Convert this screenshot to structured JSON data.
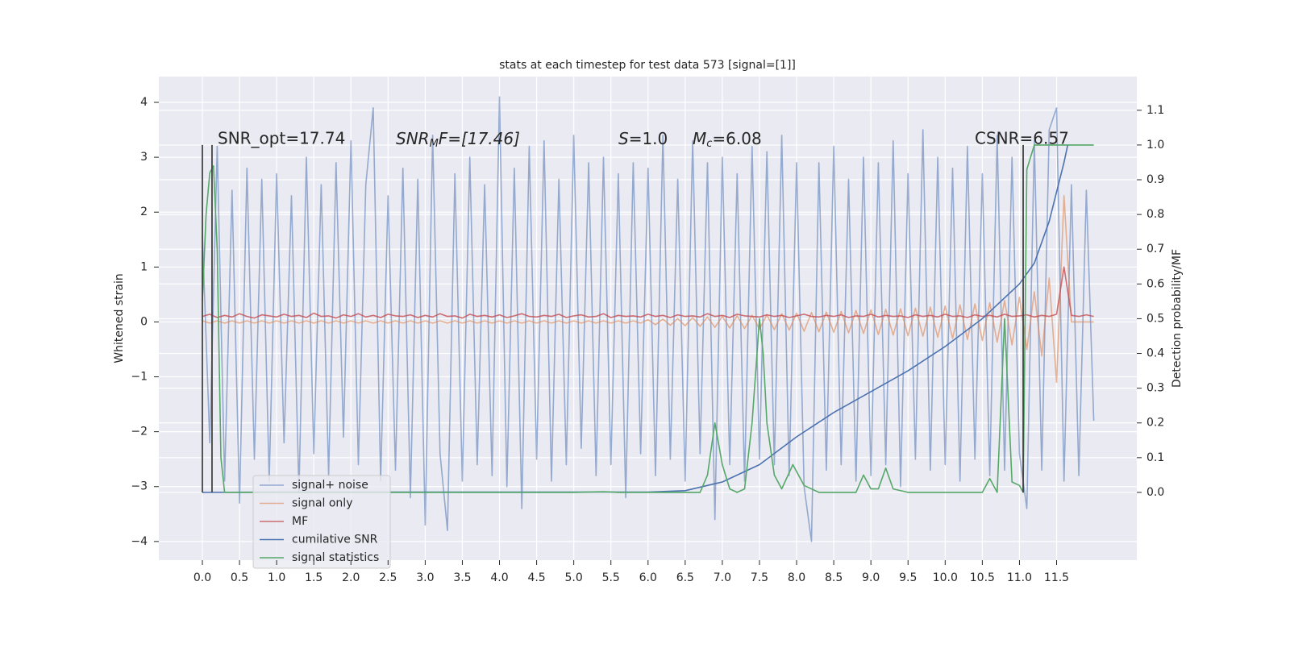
{
  "chart_data": {
    "type": "line",
    "title": "stats at each timestep for test data 573 [signal=[1]]",
    "ylabel": "Whitened strain",
    "y2label": "Detection probability/MF",
    "annotations": [
      [
        "SNR_opt=17.74"
      ],
      [
        "SNR",
        "M",
        "F=[17.46]"
      ],
      [
        "S",
        "=1.0"
      ],
      [
        "M",
        "c",
        "=6.08"
      ],
      [
        "CSNR=6.57"
      ]
    ],
    "grid": true,
    "xlim": [
      -0.586,
      12.58
    ],
    "ylim": [
      -4.34,
      4.47
    ],
    "y2lim": [
      -0.195,
      1.197
    ],
    "xticks": [
      {
        "value": 0,
        "label": "0.0"
      },
      0.5,
      {
        "value": 1,
        "label": "1.0"
      },
      1.5,
      {
        "value": 2,
        "label": "2.0"
      },
      2.5,
      {
        "value": 3,
        "label": "3.0"
      },
      3.5,
      {
        "value": 4,
        "label": "4.0"
      },
      4.5,
      {
        "value": 5,
        "label": "5.0"
      },
      5.5,
      {
        "value": 6,
        "label": "6.0"
      },
      6.5,
      {
        "value": 7,
        "label": "7.0"
      },
      7.5,
      {
        "value": 8,
        "label": "8.0"
      },
      8.5,
      {
        "value": 9,
        "label": "9.0"
      },
      9.5,
      {
        "value": 10,
        "label": "10.0"
      },
      10.5,
      {
        "value": 11,
        "label": "11.0"
      },
      11.5
    ],
    "yticks": [
      {
        "value": -4,
        "label": "−4"
      },
      {
        "value": -3,
        "label": "−3"
      },
      {
        "value": -2,
        "label": "−2"
      },
      {
        "value": -1,
        "label": "−1"
      },
      0,
      1,
      2,
      3,
      4
    ],
    "y2ticks": [
      {
        "value": 0,
        "label": "0.0"
      },
      0.1,
      0.2,
      0.3,
      0.4,
      0.5,
      0.6,
      0.7,
      0.8,
      0.9,
      {
        "value": 1,
        "label": "1.0"
      },
      1.1
    ],
    "vlines": [
      0,
      0.13,
      11.05
    ],
    "vline_range": [
      0,
      1
    ],
    "vline_color": "#444444",
    "series": [
      {
        "name": "signal+ noise",
        "color": "#4c72b0",
        "alpha": 0.55,
        "axis": "y",
        "x": [
          0,
          0.1,
          0.2,
          0.3,
          0.4,
          0.5,
          0.6,
          0.7,
          0.8,
          0.9,
          1,
          1.1,
          1.2,
          1.3,
          1.4,
          1.5,
          1.6,
          1.7,
          1.8,
          1.9,
          2,
          2.1,
          2.2,
          2.3,
          2.4,
          2.5,
          2.6,
          2.7,
          2.8,
          2.9,
          3,
          3.1,
          3.2,
          3.3,
          3.4,
          3.5,
          3.6,
          3.7,
          3.8,
          3.9,
          4,
          4.1,
          4.2,
          4.3,
          4.4,
          4.5,
          4.6,
          4.7,
          4.8,
          4.9,
          5,
          5.1,
          5.2,
          5.3,
          5.4,
          5.5,
          5.6,
          5.7,
          5.8,
          5.9,
          6,
          6.1,
          6.2,
          6.3,
          6.4,
          6.5,
          6.6,
          6.7,
          6.8,
          6.9,
          7,
          7.1,
          7.2,
          7.3,
          7.4,
          7.5,
          7.6,
          7.7,
          7.8,
          7.9,
          8,
          8.1,
          8.2,
          8.3,
          8.4,
          8.5,
          8.6,
          8.7,
          8.8,
          8.9,
          9,
          9.1,
          9.2,
          9.3,
          9.4,
          9.5,
          9.6,
          9.7,
          9.8,
          9.9,
          10,
          10.1,
          10.2,
          10.3,
          10.4,
          10.5,
          10.6,
          10.7,
          10.8,
          10.9,
          11,
          11.1,
          11.2,
          11.3,
          11.4,
          11.5,
          11.6,
          11.7,
          11.8,
          11.9,
          12
        ],
        "values": [
          1.6,
          -2.2,
          3.2,
          -2.9,
          2.4,
          -3.3,
          2.8,
          -2.5,
          2.6,
          -2.9,
          2.7,
          -2.2,
          2.3,
          -3.1,
          3.0,
          -2.4,
          2.5,
          -2.8,
          2.9,
          -2.1,
          3.3,
          -2.6,
          2.5,
          3.9,
          -2.9,
          2.3,
          -2.7,
          2.8,
          -3.2,
          2.6,
          -3.7,
          3.4,
          -2.4,
          -3.8,
          2.7,
          -2.9,
          3.0,
          -2.6,
          2.5,
          -2.8,
          4.1,
          -3.0,
          2.8,
          -3.4,
          3.2,
          -2.5,
          3.3,
          -2.9,
          2.6,
          -2.6,
          3.4,
          -2.3,
          2.9,
          -2.8,
          3.0,
          -2.6,
          2.7,
          -3.2,
          2.9,
          -2.4,
          2.8,
          -2.8,
          3.4,
          -2.5,
          2.6,
          -2.9,
          3.3,
          -2.4,
          2.9,
          -3.6,
          3.0,
          -2.6,
          2.7,
          -2.9,
          3.2,
          -2.5,
          3.1,
          -2.6,
          3.4,
          -2.8,
          2.9,
          -3.0,
          -4.0,
          2.9,
          -2.7,
          3.2,
          -2.6,
          2.6,
          -2.9,
          3.0,
          -2.8,
          2.9,
          -2.6,
          3.3,
          -3.0,
          2.7,
          -2.5,
          3.5,
          -2.7,
          3.0,
          -2.6,
          2.8,
          -2.9,
          3.2,
          -2.5,
          2.7,
          -2.8,
          3.4,
          -2.7,
          3.0,
          -2.4,
          -3.4,
          3.3,
          -2.7,
          3.5,
          3.9,
          -2.9,
          2.5,
          -2.8,
          2.4,
          -1.8
        ]
      },
      {
        "name": "signal only",
        "color": "#dd8452",
        "alpha": 0.6,
        "axis": "y",
        "x": [
          0,
          0.1,
          0.2,
          0.3,
          0.4,
          0.5,
          0.6,
          0.7,
          0.8,
          0.9,
          1,
          1.1,
          1.2,
          1.3,
          1.4,
          1.5,
          1.6,
          1.7,
          1.8,
          1.9,
          2,
          2.1,
          2.2,
          2.3,
          2.4,
          2.5,
          2.6,
          2.7,
          2.8,
          2.9,
          3,
          3.1,
          3.2,
          3.3,
          3.4,
          3.5,
          3.6,
          3.7,
          3.8,
          3.9,
          4,
          4.1,
          4.2,
          4.3,
          4.4,
          4.5,
          4.6,
          4.7,
          4.8,
          4.9,
          5,
          5.1,
          5.2,
          5.3,
          5.4,
          5.5,
          5.6,
          5.7,
          5.8,
          5.9,
          6,
          6.1,
          6.2,
          6.3,
          6.4,
          6.5,
          6.6,
          6.7,
          6.8,
          6.9,
          7,
          7.1,
          7.2,
          7.3,
          7.4,
          7.5,
          7.6,
          7.7,
          7.8,
          7.9,
          8,
          8.1,
          8.2,
          8.3,
          8.4,
          8.5,
          8.6,
          8.7,
          8.8,
          8.9,
          9,
          9.1,
          9.2,
          9.3,
          9.4,
          9.5,
          9.6,
          9.7,
          9.8,
          9.9,
          10,
          10.1,
          10.2,
          10.3,
          10.4,
          10.5,
          10.6,
          10.7,
          10.8,
          10.9,
          11,
          11.1,
          11.2,
          11.3,
          11.4,
          11.5,
          11.6,
          11.7,
          11.8,
          11.9,
          12
        ],
        "values": [
          0.02,
          -0.02,
          0.02,
          -0.02,
          0.02,
          -0.02,
          0.02,
          -0.02,
          0.02,
          -0.02,
          0.02,
          -0.02,
          0.02,
          -0.02,
          0.02,
          -0.02,
          0.02,
          -0.02,
          0.02,
          -0.02,
          0.02,
          -0.02,
          0.02,
          -0.02,
          0.02,
          -0.02,
          0.02,
          -0.02,
          0.02,
          -0.02,
          0.02,
          -0.02,
          0.02,
          -0.02,
          0.02,
          -0.02,
          0.02,
          -0.02,
          0.02,
          -0.02,
          0.02,
          -0.02,
          0.02,
          -0.02,
          0.02,
          -0.02,
          0.02,
          -0.02,
          0.02,
          -0.02,
          0.02,
          -0.02,
          0.02,
          -0.02,
          0.02,
          -0.02,
          0.02,
          -0.02,
          0.02,
          -0.02,
          0.04,
          -0.05,
          0.05,
          -0.06,
          0.06,
          -0.07,
          0.08,
          -0.08,
          0.09,
          -0.1,
          0.1,
          -0.11,
          0.11,
          -0.12,
          0.12,
          -0.13,
          0.13,
          -0.14,
          0.15,
          -0.15,
          0.16,
          -0.17,
          0.17,
          -0.18,
          0.18,
          -0.19,
          0.19,
          -0.2,
          0.21,
          -0.21,
          0.22,
          -0.23,
          0.23,
          -0.24,
          0.24,
          -0.25,
          0.25,
          -0.26,
          0.27,
          -0.28,
          0.29,
          -0.3,
          0.31,
          -0.32,
          0.33,
          -0.34,
          0.35,
          -0.37,
          0.39,
          -0.42,
          0.45,
          -0.5,
          0.55,
          -0.62,
          0.8,
          -1.1,
          2.3,
          0,
          0,
          0,
          0
        ]
      },
      {
        "name": "MF",
        "color": "#c44e52",
        "alpha": 0.8,
        "axis": "y",
        "x": [
          0,
          0.1,
          0.2,
          0.3,
          0.4,
          0.5,
          0.6,
          0.7,
          0.8,
          0.9,
          1,
          1.1,
          1.2,
          1.3,
          1.4,
          1.5,
          1.6,
          1.7,
          1.8,
          1.9,
          2,
          2.1,
          2.2,
          2.3,
          2.4,
          2.5,
          2.6,
          2.7,
          2.8,
          2.9,
          3,
          3.1,
          3.2,
          3.3,
          3.4,
          3.5,
          3.6,
          3.7,
          3.8,
          3.9,
          4,
          4.1,
          4.2,
          4.3,
          4.4,
          4.5,
          4.6,
          4.7,
          4.8,
          4.9,
          5,
          5.1,
          5.2,
          5.3,
          5.4,
          5.5,
          5.6,
          5.7,
          5.8,
          5.9,
          6,
          6.1,
          6.2,
          6.3,
          6.4,
          6.5,
          6.6,
          6.7,
          6.8,
          6.9,
          7,
          7.1,
          7.2,
          7.3,
          7.4,
          7.5,
          7.6,
          7.7,
          7.8,
          7.9,
          8,
          8.1,
          8.2,
          8.3,
          8.4,
          8.5,
          8.6,
          8.7,
          8.8,
          8.9,
          9,
          9.1,
          9.2,
          9.3,
          9.4,
          9.5,
          9.6,
          9.7,
          9.8,
          9.9,
          10,
          10.1,
          10.2,
          10.3,
          10.4,
          10.5,
          10.6,
          10.7,
          10.8,
          10.9,
          11,
          11.1,
          11.2,
          11.3,
          11.4,
          11.5,
          11.6,
          11.7,
          11.8,
          11.9,
          12
        ],
        "values": [
          0.1,
          0.14,
          0.08,
          0.12,
          0.09,
          0.15,
          0.1,
          0.07,
          0.13,
          0.11,
          0.09,
          0.14,
          0.1,
          0.12,
          0.08,
          0.16,
          0.1,
          0.11,
          0.07,
          0.13,
          0.1,
          0.15,
          0.09,
          0.12,
          0.08,
          0.14,
          0.11,
          0.1,
          0.13,
          0.08,
          0.12,
          0.09,
          0.15,
          0.1,
          0.11,
          0.07,
          0.14,
          0.1,
          0.12,
          0.09,
          0.13,
          0.08,
          0.11,
          0.15,
          0.1,
          0.09,
          0.12,
          0.1,
          0.14,
          0.08,
          0.11,
          0.13,
          0.09,
          0.1,
          0.15,
          0.08,
          0.12,
          0.1,
          0.11,
          0.09,
          0.14,
          0.1,
          0.12,
          0.08,
          0.13,
          0.1,
          0.11,
          0.09,
          0.15,
          0.1,
          0.12,
          0.08,
          0.14,
          0.11,
          0.1,
          0.09,
          0.13,
          0.1,
          0.12,
          0.08,
          0.11,
          0.14,
          0.1,
          0.09,
          0.12,
          0.1,
          0.13,
          0.08,
          0.11,
          0.1,
          0.14,
          0.09,
          0.12,
          0.1,
          0.11,
          0.08,
          0.13,
          0.1,
          0.12,
          0.09,
          0.14,
          0.1,
          0.11,
          0.08,
          0.13,
          0.1,
          0.12,
          0.09,
          0.14,
          0.1,
          0.11,
          0.13,
          0.09,
          0.12,
          0.1,
          0.14,
          1.0,
          0.12,
          0.1,
          0.13,
          0.1
        ]
      },
      {
        "name": "cumilative SNR",
        "color": "#4c72b0",
        "alpha": 1,
        "axis": "y2",
        "x": [
          0,
          1,
          2,
          3,
          4,
          5,
          6,
          6.5,
          7,
          7.5,
          8,
          8.5,
          9,
          9.5,
          10,
          10.5,
          11,
          11.2,
          11.4,
          11.6,
          11.65
        ],
        "values": [
          0,
          0.001,
          0.001,
          0.001,
          0.001,
          0.001,
          0.001,
          0.005,
          0.03,
          0.08,
          0.16,
          0.23,
          0.29,
          0.35,
          0.42,
          0.5,
          0.6,
          0.66,
          0.78,
          0.95,
          1.0
        ]
      },
      {
        "name": "signal statistics",
        "color": "#55a868",
        "alpha": 1,
        "axis": "y2",
        "x": [
          0,
          0.05,
          0.1,
          0.15,
          0.2,
          0.25,
          0.3,
          1,
          2,
          3,
          4,
          5,
          5.4,
          5.6,
          6,
          6.7,
          6.8,
          6.9,
          7,
          7.1,
          7.2,
          7.3,
          7.4,
          7.5,
          7.55,
          7.6,
          7.7,
          7.8,
          7.95,
          8.1,
          8.3,
          8.8,
          8.9,
          9,
          9.1,
          9.2,
          9.3,
          9.5,
          10,
          10.5,
          10.6,
          10.7,
          10.8,
          10.9,
          11,
          11.05,
          11.1,
          11.2,
          11.3,
          12
        ],
        "values": [
          0.55,
          0.8,
          0.92,
          0.94,
          0.7,
          0.1,
          0,
          0,
          0,
          0,
          0,
          0,
          0.002,
          0,
          0,
          0,
          0.05,
          0.2,
          0.08,
          0.01,
          0,
          0.01,
          0.2,
          0.5,
          0.4,
          0.2,
          0.05,
          0.01,
          0.08,
          0.02,
          0,
          0,
          0.05,
          0.01,
          0.01,
          0.07,
          0.01,
          0,
          0,
          0,
          0.04,
          0,
          0.5,
          0.03,
          0.02,
          0,
          0.93,
          1.0,
          1.0,
          1.0
        ]
      }
    ]
  }
}
